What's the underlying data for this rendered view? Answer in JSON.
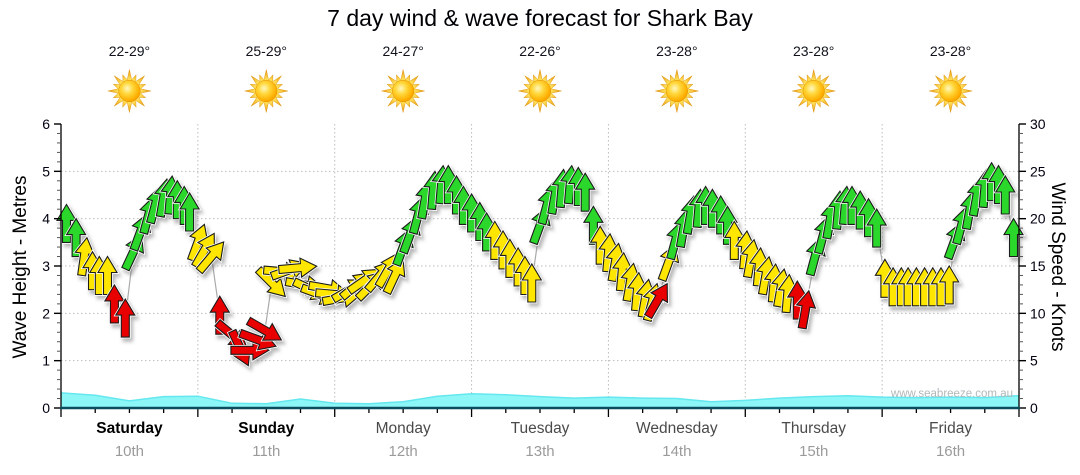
{
  "chart_data": {
    "type": "wind_wave_forecast",
    "title": "7 day wind & wave forecast for Shark Bay",
    "watermark": "www.seabreeze.com.au",
    "days": [
      {
        "name": "Saturday",
        "date": "10th",
        "temp": "22-29°",
        "weather_icon": "sun-icon",
        "weekend": true
      },
      {
        "name": "Sunday",
        "date": "11th",
        "temp": "25-29°",
        "weather_icon": "sun-icon",
        "weekend": true
      },
      {
        "name": "Monday",
        "date": "12th",
        "temp": "24-27°",
        "weather_icon": "sun-icon",
        "weekend": false
      },
      {
        "name": "Tuesday",
        "date": "13th",
        "temp": "22-26°",
        "weather_icon": "sun-icon",
        "weekend": false
      },
      {
        "name": "Wednesday",
        "date": "14th",
        "temp": "23-28°",
        "weather_icon": "sun-icon",
        "weekend": false
      },
      {
        "name": "Thursday",
        "date": "15th",
        "temp": "23-28°",
        "weather_icon": "sun-icon",
        "weekend": false
      },
      {
        "name": "Friday",
        "date": "16th",
        "temp": "23-28°",
        "weather_icon": "sun-icon",
        "weekend": false
      }
    ],
    "left_axis": {
      "label": "Wave Height - Metres",
      "range": [
        0,
        6
      ],
      "ticks": [
        0,
        1,
        2,
        3,
        4,
        5,
        6
      ],
      "minor_step": 0.2
    },
    "right_axis": {
      "label": "Wind Speed - Knots",
      "range": [
        0,
        30
      ],
      "ticks": [
        0,
        5,
        10,
        15,
        20,
        25,
        30
      ],
      "minor_step": 1
    },
    "grid": true,
    "legend": "none",
    "wind_arrows": {
      "fields": [
        "day_offset",
        "knots",
        "direction_deg_cw_from_up",
        "strength_color"
      ],
      "colors": {
        "g": "#2bd72b",
        "y": "#ffe600",
        "r": "#e80000"
      },
      "points": [
        [
          0.04,
          19.5,
          0,
          "g"
        ],
        [
          0.11,
          18.0,
          0,
          "g"
        ],
        [
          0.17,
          16.0,
          8,
          "y"
        ],
        [
          0.23,
          14.5,
          0,
          "y"
        ],
        [
          0.28,
          14.0,
          0,
          "y"
        ],
        [
          0.34,
          14.0,
          0,
          "y"
        ],
        [
          0.39,
          11.0,
          0,
          "r"
        ],
        [
          0.47,
          9.5,
          0,
          "r"
        ],
        [
          0.53,
          16.5,
          25,
          "g"
        ],
        [
          0.58,
          18.6,
          20,
          "g"
        ],
        [
          0.64,
          20.4,
          15,
          "g"
        ],
        [
          0.69,
          21.5,
          15,
          "g"
        ],
        [
          0.75,
          22.2,
          10,
          "g"
        ],
        [
          0.8,
          22.5,
          5,
          "g"
        ],
        [
          0.85,
          22.0,
          0,
          "g"
        ],
        [
          0.9,
          21.4,
          0,
          "g"
        ],
        [
          0.94,
          20.7,
          0,
          "g"
        ],
        [
          1.0,
          17.5,
          20,
          "y"
        ],
        [
          1.05,
          16.7,
          30,
          "y"
        ],
        [
          1.1,
          16.0,
          40,
          "y"
        ],
        [
          1.16,
          9.8,
          0,
          "r"
        ],
        [
          1.25,
          7.7,
          130,
          "r"
        ],
        [
          1.31,
          6.3,
          155,
          "r"
        ],
        [
          1.38,
          6.1,
          90,
          "r"
        ],
        [
          1.44,
          7.2,
          110,
          "r"
        ],
        [
          1.49,
          8.2,
          120,
          "r"
        ],
        [
          1.54,
          13.2,
          135,
          "y"
        ],
        [
          1.62,
          14.4,
          95,
          "y"
        ],
        [
          1.67,
          14.6,
          70,
          "y"
        ],
        [
          1.73,
          14.8,
          85,
          "y"
        ],
        [
          1.78,
          13.0,
          100,
          "y"
        ],
        [
          1.83,
          12.5,
          115,
          "y"
        ],
        [
          1.89,
          12.0,
          110,
          "y"
        ],
        [
          1.95,
          12.6,
          100,
          "y"
        ],
        [
          2.0,
          12.0,
          95,
          "y"
        ],
        [
          2.05,
          11.6,
          80,
          "y"
        ],
        [
          2.11,
          12.5,
          60,
          "y"
        ],
        [
          2.16,
          13.0,
          50,
          "y"
        ],
        [
          2.22,
          13.5,
          55,
          "y"
        ],
        [
          2.27,
          13.0,
          45,
          "y"
        ],
        [
          2.33,
          14.0,
          40,
          "y"
        ],
        [
          2.39,
          14.6,
          30,
          "y"
        ],
        [
          2.44,
          14.0,
          25,
          "y"
        ],
        [
          2.5,
          17.0,
          20,
          "g"
        ],
        [
          2.55,
          18.3,
          20,
          "g"
        ],
        [
          2.61,
          20.4,
          15,
          "g"
        ],
        [
          2.66,
          22.0,
          10,
          "g"
        ],
        [
          2.72,
          23.0,
          5,
          "g"
        ],
        [
          2.78,
          23.6,
          5,
          "g"
        ],
        [
          2.83,
          23.6,
          0,
          "g"
        ],
        [
          2.89,
          22.5,
          0,
          "g"
        ],
        [
          2.94,
          21.4,
          0,
          "g"
        ],
        [
          3.0,
          20.6,
          0,
          "g"
        ],
        [
          3.06,
          19.7,
          0,
          "g"
        ],
        [
          3.11,
          18.6,
          0,
          "g"
        ],
        [
          3.17,
          17.7,
          0,
          "y"
        ],
        [
          3.23,
          16.7,
          0,
          "y"
        ],
        [
          3.28,
          15.8,
          0,
          "y"
        ],
        [
          3.34,
          14.9,
          0,
          "y"
        ],
        [
          3.39,
          14.0,
          0,
          "y"
        ],
        [
          3.44,
          13.2,
          0,
          "y"
        ],
        [
          3.5,
          19.3,
          20,
          "g"
        ],
        [
          3.55,
          21.4,
          15,
          "g"
        ],
        [
          3.61,
          22.5,
          10,
          "g"
        ],
        [
          3.66,
          23.2,
          5,
          "g"
        ],
        [
          3.72,
          23.6,
          5,
          "g"
        ],
        [
          3.78,
          23.4,
          0,
          "g"
        ],
        [
          3.83,
          22.8,
          0,
          "g"
        ],
        [
          3.89,
          19.3,
          0,
          "g"
        ],
        [
          3.94,
          17.2,
          0,
          "y"
        ],
        [
          4.0,
          16.4,
          5,
          "y"
        ],
        [
          4.05,
          15.4,
          10,
          "y"
        ],
        [
          4.1,
          14.4,
          5,
          "y"
        ],
        [
          4.16,
          13.3,
          10,
          "y"
        ],
        [
          4.21,
          12.3,
          5,
          "y"
        ],
        [
          4.27,
          11.6,
          10,
          "y"
        ],
        [
          4.32,
          11.2,
          15,
          "y"
        ],
        [
          4.36,
          11.4,
          30,
          "r"
        ],
        [
          4.44,
          15.4,
          20,
          "y"
        ],
        [
          4.49,
          17.7,
          15,
          "g"
        ],
        [
          4.55,
          19.0,
          10,
          "g"
        ],
        [
          4.6,
          20.4,
          10,
          "g"
        ],
        [
          4.66,
          21.1,
          5,
          "g"
        ],
        [
          4.71,
          21.4,
          0,
          "g"
        ],
        [
          4.76,
          21.1,
          0,
          "g"
        ],
        [
          4.82,
          20.4,
          0,
          "g"
        ],
        [
          4.87,
          19.3,
          0,
          "g"
        ],
        [
          4.92,
          17.7,
          0,
          "y"
        ],
        [
          5.0,
          16.7,
          5,
          "y"
        ],
        [
          5.04,
          15.8,
          10,
          "y"
        ],
        [
          5.1,
          14.9,
          5,
          "y"
        ],
        [
          5.15,
          14.0,
          10,
          "y"
        ],
        [
          5.21,
          13.2,
          5,
          "y"
        ],
        [
          5.26,
          12.7,
          10,
          "y"
        ],
        [
          5.31,
          12.1,
          5,
          "y"
        ],
        [
          5.38,
          11.4,
          0,
          "r"
        ],
        [
          5.44,
          10.4,
          10,
          "r"
        ],
        [
          5.51,
          16.0,
          15,
          "g"
        ],
        [
          5.57,
          18.3,
          15,
          "g"
        ],
        [
          5.62,
          19.9,
          10,
          "g"
        ],
        [
          5.68,
          20.9,
          5,
          "g"
        ],
        [
          5.73,
          21.4,
          5,
          "g"
        ],
        [
          5.78,
          21.4,
          0,
          "g"
        ],
        [
          5.84,
          20.9,
          0,
          "g"
        ],
        [
          5.9,
          20.1,
          0,
          "g"
        ],
        [
          5.96,
          19.0,
          0,
          "g"
        ],
        [
          6.02,
          13.7,
          0,
          "y"
        ],
        [
          6.08,
          12.8,
          0,
          "y"
        ],
        [
          6.14,
          12.8,
          0,
          "y"
        ],
        [
          6.19,
          12.8,
          0,
          "y"
        ],
        [
          6.25,
          12.8,
          0,
          "y"
        ],
        [
          6.31,
          12.8,
          0,
          "y"
        ],
        [
          6.37,
          12.8,
          0,
          "y"
        ],
        [
          6.43,
          12.8,
          0,
          "y"
        ],
        [
          6.49,
          13.0,
          0,
          "y"
        ],
        [
          6.53,
          17.7,
          20,
          "g"
        ],
        [
          6.58,
          19.3,
          15,
          "g"
        ],
        [
          6.64,
          20.9,
          10,
          "g"
        ],
        [
          6.69,
          22.3,
          10,
          "g"
        ],
        [
          6.75,
          23.2,
          5,
          "g"
        ],
        [
          6.8,
          23.9,
          0,
          "g"
        ],
        [
          6.85,
          23.6,
          0,
          "g"
        ],
        [
          6.9,
          22.5,
          0,
          "g"
        ],
        [
          6.96,
          18.0,
          0,
          "g"
        ]
      ]
    },
    "wave_height_m": {
      "fields": [
        "day_offset",
        "metres"
      ],
      "points": [
        [
          0,
          0.32
        ],
        [
          0.25,
          0.27
        ],
        [
          0.5,
          0.15
        ],
        [
          0.75,
          0.24
        ],
        [
          1,
          0.25
        ],
        [
          1.25,
          0.1
        ],
        [
          1.5,
          0.09
        ],
        [
          1.75,
          0.19
        ],
        [
          2,
          0.1
        ],
        [
          2.25,
          0.09
        ],
        [
          2.5,
          0.13
        ],
        [
          2.75,
          0.25
        ],
        [
          3,
          0.3
        ],
        [
          3.25,
          0.28
        ],
        [
          3.5,
          0.24
        ],
        [
          3.75,
          0.21
        ],
        [
          4,
          0.23
        ],
        [
          4.25,
          0.21
        ],
        [
          4.5,
          0.2
        ],
        [
          4.75,
          0.13
        ],
        [
          5,
          0.16
        ],
        [
          5.25,
          0.21
        ],
        [
          5.5,
          0.24
        ],
        [
          5.75,
          0.26
        ],
        [
          6,
          0.23
        ],
        [
          6.25,
          0.22
        ],
        [
          6.5,
          0.23
        ],
        [
          6.75,
          0.22
        ],
        [
          7,
          0.26
        ]
      ]
    },
    "style_colors": {
      "arrow_green": "#2bd72b",
      "arrow_yellow": "#ffe600",
      "arrow_red": "#e80000",
      "wave_fill": "#8df7f7",
      "wave_edge": "#64e7ee",
      "bottom_axis": "#0d4b5f",
      "gridline": "#bdbdbd",
      "connector": "#aaaaaa",
      "sun_core": "#ffc81e",
      "sun_ray": "#f0a01e"
    }
  }
}
